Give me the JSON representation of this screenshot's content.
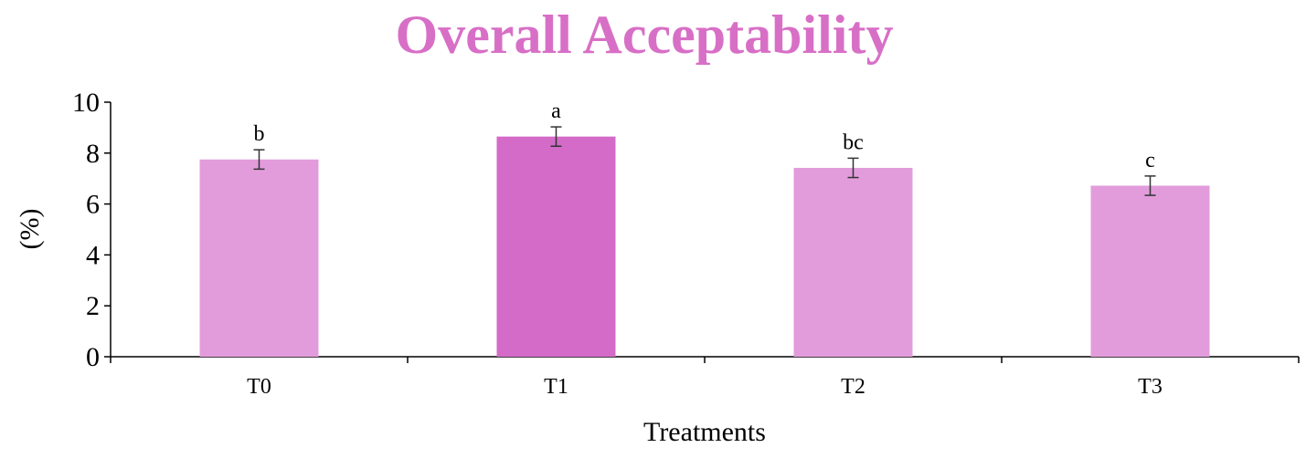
{
  "chart_data": {
    "type": "bar",
    "title": "Overall Acceptability",
    "xlabel": "Treatments",
    "ylabel": "(%)",
    "categories": [
      "T0",
      "T1",
      "T2",
      "T3"
    ],
    "values": [
      7.75,
      8.65,
      7.42,
      6.72
    ],
    "errors": [
      0.38,
      0.38,
      0.38,
      0.38
    ],
    "significance_labels": [
      "b",
      "a",
      "bc",
      "c"
    ],
    "ylim": [
      0,
      10
    ],
    "yticks": [
      "0",
      "2",
      "4",
      "6",
      "8",
      "10"
    ],
    "grid": false,
    "legend": "none"
  },
  "colors": {
    "title": "#D86FC6",
    "bar_default": "#E29CDB",
    "bar_highlight": "#D46BC8",
    "axis": "#000000",
    "error_bar": "#333333"
  },
  "highlight_category": "T1"
}
